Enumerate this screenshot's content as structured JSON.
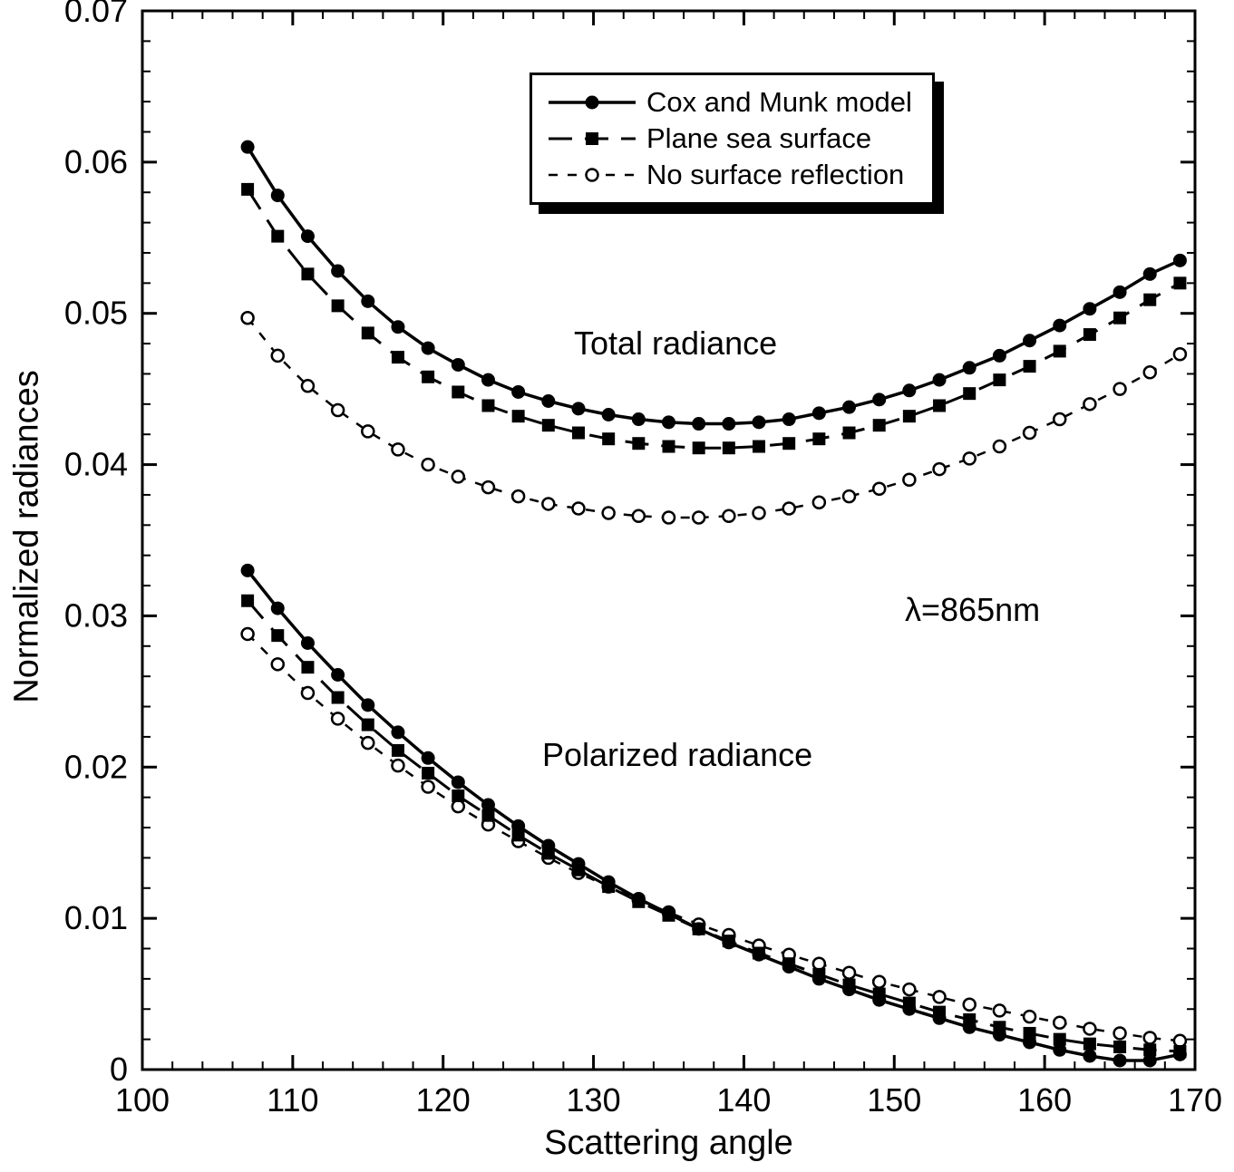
{
  "figure": {
    "background": "#ffffff",
    "ink": "#000000"
  },
  "chart_data": {
    "type": "line",
    "title": "",
    "xlabel": "Scattering angle",
    "ylabel": "Normalized radiances",
    "xlim": [
      100,
      170
    ],
    "ylim": [
      0,
      0.07
    ],
    "x_minor_step": 2,
    "y_minor_step": 0.002,
    "grid": false,
    "legend_position": "top-center",
    "x_ticks": [
      {
        "v": 100,
        "label": "100"
      },
      {
        "v": 110,
        "label": "110"
      },
      {
        "v": 120,
        "label": "120"
      },
      {
        "v": 130,
        "label": "130"
      },
      {
        "v": 140,
        "label": "140"
      },
      {
        "v": 150,
        "label": "150"
      },
      {
        "v": 160,
        "label": "160"
      },
      {
        "v": 170,
        "label": "170"
      }
    ],
    "y_ticks": [
      {
        "v": 0,
        "label": "0"
      },
      {
        "v": 0.01,
        "label": "0.01"
      },
      {
        "v": 0.02,
        "label": "0.02"
      },
      {
        "v": 0.03,
        "label": "0.03"
      },
      {
        "v": 0.04,
        "label": "0.04"
      },
      {
        "v": 0.05,
        "label": "0.05"
      },
      {
        "v": 0.06,
        "label": "0.06"
      },
      {
        "v": 0.07,
        "label": "0.07"
      }
    ],
    "annotations": {
      "total_radiance": "Total radiance",
      "wavelength": "λ=865nm",
      "polarized_radiance": "Polarized radiance"
    },
    "x": [
      107,
      109,
      111,
      113,
      115,
      117,
      119,
      121,
      123,
      125,
      127,
      129,
      131,
      133,
      135,
      137,
      139,
      141,
      143,
      145,
      147,
      149,
      151,
      153,
      155,
      157,
      159,
      161,
      163,
      165,
      167,
      169
    ],
    "series": [
      {
        "name": "Cox and Munk model",
        "group": "Total radiance",
        "line": "solid",
        "marker": "filled-circle",
        "values": [
          0.061,
          0.0578,
          0.0551,
          0.0528,
          0.0508,
          0.0491,
          0.0477,
          0.0466,
          0.0456,
          0.0448,
          0.0442,
          0.0437,
          0.0433,
          0.043,
          0.0428,
          0.0427,
          0.0427,
          0.0428,
          0.043,
          0.0434,
          0.0438,
          0.0443,
          0.0449,
          0.0456,
          0.0464,
          0.0472,
          0.0482,
          0.0492,
          0.0503,
          0.0514,
          0.0526,
          0.0535
        ]
      },
      {
        "name": "Plane sea surface",
        "group": "Total radiance",
        "line": "long-dash",
        "marker": "filled-square",
        "values": [
          0.0582,
          0.0551,
          0.0526,
          0.0505,
          0.0487,
          0.0471,
          0.0458,
          0.0448,
          0.0439,
          0.0432,
          0.0426,
          0.0421,
          0.0417,
          0.0414,
          0.0412,
          0.0411,
          0.0411,
          0.0412,
          0.0414,
          0.0417,
          0.0421,
          0.0426,
          0.0432,
          0.0439,
          0.0447,
          0.0456,
          0.0465,
          0.0475,
          0.0486,
          0.0497,
          0.0509,
          0.052
        ]
      },
      {
        "name": "No surface reflection",
        "group": "Total radiance",
        "line": "short-dash",
        "marker": "open-circle",
        "values": [
          0.0497,
          0.0472,
          0.0452,
          0.0436,
          0.0422,
          0.041,
          0.04,
          0.0392,
          0.0385,
          0.0379,
          0.0374,
          0.0371,
          0.0368,
          0.0366,
          0.0365,
          0.0365,
          0.0366,
          0.0368,
          0.0371,
          0.0375,
          0.0379,
          0.0384,
          0.039,
          0.0397,
          0.0404,
          0.0412,
          0.0421,
          0.043,
          0.044,
          0.045,
          0.0461,
          0.0473
        ]
      },
      {
        "name": "Cox and Munk model",
        "group": "Polarized radiance",
        "line": "solid",
        "marker": "filled-circle",
        "values": [
          0.033,
          0.0305,
          0.0282,
          0.0261,
          0.0241,
          0.0223,
          0.0206,
          0.019,
          0.0175,
          0.0161,
          0.0148,
          0.0136,
          0.0124,
          0.0113,
          0.0103,
          0.0093,
          0.0084,
          0.0076,
          0.0068,
          0.006,
          0.0053,
          0.0046,
          0.004,
          0.0034,
          0.0028,
          0.0023,
          0.0018,
          0.0013,
          0.0009,
          0.0006,
          0.0006,
          0.001
        ]
      },
      {
        "name": "Plane sea surface",
        "group": "Polarized radiance",
        "line": "long-dash",
        "marker": "filled-square",
        "values": [
          0.031,
          0.0287,
          0.0266,
          0.0246,
          0.0228,
          0.0211,
          0.0196,
          0.0181,
          0.0168,
          0.0155,
          0.0143,
          0.0132,
          0.0121,
          0.0111,
          0.0102,
          0.0093,
          0.0085,
          0.0077,
          0.007,
          0.0063,
          0.0056,
          0.005,
          0.0044,
          0.0038,
          0.0033,
          0.0028,
          0.0024,
          0.002,
          0.0017,
          0.0015,
          0.0013,
          0.0012
        ]
      },
      {
        "name": "No surface reflection",
        "group": "Polarized radiance",
        "line": "short-dash",
        "marker": "open-circle",
        "values": [
          0.0288,
          0.0268,
          0.0249,
          0.0232,
          0.0216,
          0.0201,
          0.0187,
          0.0174,
          0.0162,
          0.0151,
          0.014,
          0.013,
          0.0121,
          0.0112,
          0.0104,
          0.0096,
          0.0089,
          0.0082,
          0.0076,
          0.007,
          0.0064,
          0.0058,
          0.0053,
          0.0048,
          0.0043,
          0.0039,
          0.0035,
          0.0031,
          0.0027,
          0.0024,
          0.0021,
          0.0019
        ]
      }
    ]
  }
}
